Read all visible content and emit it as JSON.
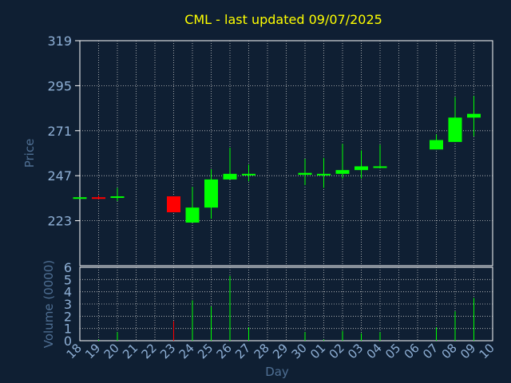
{
  "colors": {
    "background": "#0f1f33",
    "title": "#ffff00",
    "axis_text": "#8fb0d6",
    "grid": "#c8c8c8",
    "frame": "#ffffff",
    "up": "#00ff00",
    "down": "#ff0000",
    "axis_title": "#4f6f93"
  },
  "chart_data": [
    {
      "type": "candlestick",
      "title": "CML - last updated 09/07/2025",
      "ylabel": "Price",
      "ylim": [
        199,
        319
      ],
      "yticks": [
        319,
        295,
        271,
        247,
        223
      ],
      "grid": true,
      "x_ticks": [
        "18",
        "19",
        "20",
        "21",
        "22",
        "23",
        "24",
        "25",
        "26",
        "27",
        "28",
        "29",
        "30",
        "01",
        "02",
        "03",
        "04",
        "05",
        "06",
        "07",
        "08",
        "09",
        "10"
      ],
      "candles": [
        {
          "day": "18",
          "open": 235.5,
          "close": 235.5,
          "high": 235.5,
          "low": 235.5
        },
        {
          "day": "19",
          "open": 235.5,
          "close": 235.0,
          "high": 236.5,
          "low": 234.5
        },
        {
          "day": "20",
          "open": 235.5,
          "close": 236.0,
          "high": 240.5,
          "low": 233.5
        },
        {
          "day": "23",
          "open": 236.0,
          "close": 227.5,
          "high": 236.0,
          "low": 227.5
        },
        {
          "day": "24",
          "open": 222.0,
          "close": 230.0,
          "high": 241.0,
          "low": 222.0
        },
        {
          "day": "25",
          "open": 230.0,
          "close": 245.0,
          "high": 250.5,
          "low": 224.0
        },
        {
          "day": "26",
          "open": 245.0,
          "close": 248.0,
          "high": 262.0,
          "low": 245.0
        },
        {
          "day": "27",
          "open": 248.0,
          "close": 248.0,
          "high": 253.0,
          "low": 244.0
        },
        {
          "day": "30",
          "open": 247.5,
          "close": 248.5,
          "high": 256.0,
          "low": 242.0
        },
        {
          "day": "01",
          "open": 247.5,
          "close": 248.0,
          "high": 256.5,
          "low": 240.5
        },
        {
          "day": "02",
          "open": 248.0,
          "close": 250.0,
          "high": 264.0,
          "low": 245.5
        },
        {
          "day": "03",
          "open": 250.0,
          "close": 252.0,
          "high": 260.5,
          "low": 245.5
        },
        {
          "day": "04",
          "open": 251.5,
          "close": 252.0,
          "high": 263.5,
          "low": 251.5
        },
        {
          "day": "07",
          "open": 261.0,
          "close": 266.0,
          "high": 269.0,
          "low": 261.0
        },
        {
          "day": "08",
          "open": 265.0,
          "close": 278.0,
          "high": 289.0,
          "low": 265.0
        },
        {
          "day": "09",
          "open": 278.0,
          "close": 280.0,
          "high": 289.5,
          "low": 268.0
        }
      ]
    },
    {
      "type": "bar",
      "ylabel": "Volume (0000)",
      "xlabel": "Day",
      "ylim": [
        0,
        6
      ],
      "yticks": [
        0,
        1,
        2,
        3,
        4,
        5,
        6
      ],
      "grid": true,
      "volumes": [
        {
          "day": "18",
          "value": 0
        },
        {
          "day": "19",
          "value": 0.1
        },
        {
          "day": "20",
          "value": 0.7
        },
        {
          "day": "23",
          "value": 1.6,
          "down": true
        },
        {
          "day": "24",
          "value": 3.3
        },
        {
          "day": "25",
          "value": 2.8
        },
        {
          "day": "26",
          "value": 5.3
        },
        {
          "day": "27",
          "value": 1.1
        },
        {
          "day": "30",
          "value": 0.7
        },
        {
          "day": "01",
          "value": 0.1
        },
        {
          "day": "02",
          "value": 0.8
        },
        {
          "day": "03",
          "value": 0.6
        },
        {
          "day": "04",
          "value": 0.7
        },
        {
          "day": "07",
          "value": 1.1
        },
        {
          "day": "08",
          "value": 2.4
        },
        {
          "day": "09",
          "value": 3.5
        }
      ]
    }
  ]
}
